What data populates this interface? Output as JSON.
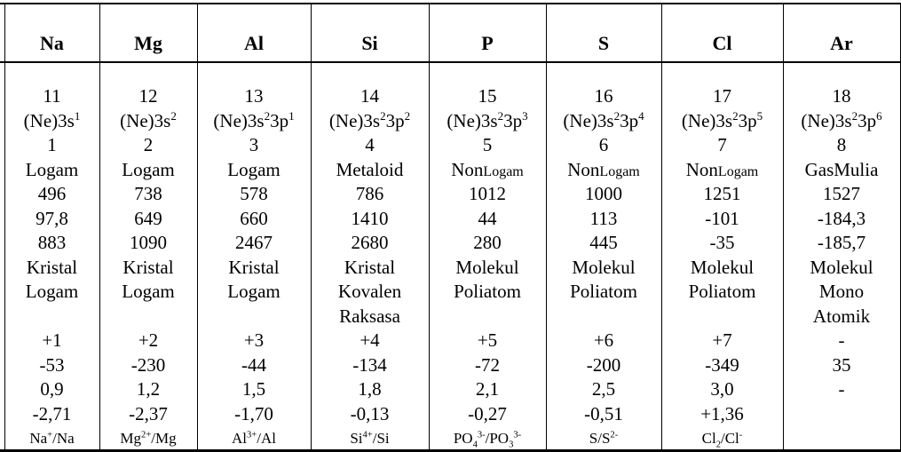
{
  "page": {
    "background_color": "#ffffff",
    "text_color": "#000000",
    "border_color": "#000000",
    "description_note": ""
  },
  "table": {
    "header_symbols": [
      "Na",
      "Mg",
      "Al",
      "Si",
      "P",
      "S",
      "Cl",
      "Ar"
    ],
    "columns": [
      {
        "symbol": "Na",
        "atomic_number": "11",
        "electron_configuration": "(Ne)3s^{1}",
        "valence_electrons": "1",
        "element_type": "Logam",
        "ionization_energy": "496",
        "melting_point": "97,8",
        "boiling_point": "883",
        "structure_lines": [
          "Kristal",
          "Logam",
          ""
        ],
        "oxidation_state": "+1",
        "electron_affinity": "-53",
        "electronegativity": "0,9",
        "electrode_potential": "-2,71",
        "redox_couple": "Na^{+}/Na"
      },
      {
        "symbol": "Mg",
        "atomic_number": "12",
        "electron_configuration": "(Ne)3s^{2}",
        "valence_electrons": "2",
        "element_type": "Logam",
        "ionization_energy": "738",
        "melting_point": "649",
        "boiling_point": "1090",
        "structure_lines": [
          "Kristal",
          "Logam",
          ""
        ],
        "oxidation_state": "+2",
        "electron_affinity": "-230",
        "electronegativity": "1,2",
        "electrode_potential": "-2,37",
        "redox_couple": "Mg^{2+}/Mg"
      },
      {
        "symbol": "Al",
        "atomic_number": "13",
        "electron_configuration": "(Ne)3s^{2}3p^{1}",
        "valence_electrons": "3",
        "element_type": "Logam",
        "ionization_energy": "578",
        "melting_point": "660",
        "boiling_point": "2467",
        "structure_lines": [
          "Kristal",
          "Logam",
          ""
        ],
        "oxidation_state": "+3",
        "electron_affinity": "-44",
        "electronegativity": "1,5",
        "electrode_potential": "-1,70",
        "redox_couple": "Al^{3+}/Al"
      },
      {
        "symbol": "Si",
        "atomic_number": "14",
        "electron_configuration": "(Ne)3s^{2}3p^{2}",
        "valence_electrons": "4",
        "element_type": "Metaloid",
        "ionization_energy": "786",
        "melting_point": "1410",
        "boiling_point": "2680",
        "structure_lines": [
          "Kristal",
          "Kovalen",
          "Raksasa"
        ],
        "oxidation_state": "+4",
        "electron_affinity": "-134",
        "electronegativity": "1,8",
        "electrode_potential": "-0,13",
        "redox_couple": "Si^{4+}/Si"
      },
      {
        "symbol": "P",
        "atomic_number": "15",
        "electron_configuration": "(Ne)3s^{2}3p^{3}",
        "valence_electrons": "5",
        "element_type": "Non~{Logam}",
        "ionization_energy": "1012",
        "melting_point": "44",
        "boiling_point": "280",
        "structure_lines": [
          "Molekul",
          "Poliatom",
          ""
        ],
        "oxidation_state": "+5",
        "electron_affinity": "-72",
        "electronegativity": "2,1",
        "electrode_potential": "-0,27",
        "redox_couple": "PO_{4}^{3-}/PO_{3}^{3-}"
      },
      {
        "symbol": "S",
        "atomic_number": "16",
        "electron_configuration": "(Ne)3s^{2}3p^{4}",
        "valence_electrons": "6",
        "element_type": "Non~{Logam}",
        "ionization_energy": "1000",
        "melting_point": "113",
        "boiling_point": "445",
        "structure_lines": [
          "Molekul",
          "Poliatom",
          ""
        ],
        "oxidation_state": "+6",
        "electron_affinity": "-200",
        "electronegativity": "2,5",
        "electrode_potential": "-0,51",
        "redox_couple": "S/S^{2-}"
      },
      {
        "symbol": "Cl",
        "atomic_number": "17",
        "electron_configuration": "(Ne)3s^{2}3p^{5}",
        "valence_electrons": "7",
        "element_type": "Non~{Logam}",
        "ionization_energy": "1251",
        "melting_point": "-101",
        "boiling_point": "-35",
        "structure_lines": [
          "Molekul",
          "Poliatom",
          ""
        ],
        "oxidation_state": "+7",
        "electron_affinity": "-349",
        "electronegativity": "3,0",
        "electrode_potential": "+1,36",
        "redox_couple": "Cl_{2}/Cl^{-}"
      },
      {
        "symbol": "Ar",
        "atomic_number": "18",
        "electron_configuration": "(Ne)3s^{2}3p^{6}",
        "valence_electrons": "8",
        "element_type": "GasMulia",
        "ionization_energy": "1527",
        "melting_point": "-184,3",
        "boiling_point": "-185,7",
        "structure_lines": [
          "Molekul",
          "Mono",
          "Atomik"
        ],
        "oxidation_state": "-",
        "electron_affinity": "35",
        "electronegativity": "-",
        "electrode_potential": "",
        "redox_couple": ""
      }
    ]
  }
}
